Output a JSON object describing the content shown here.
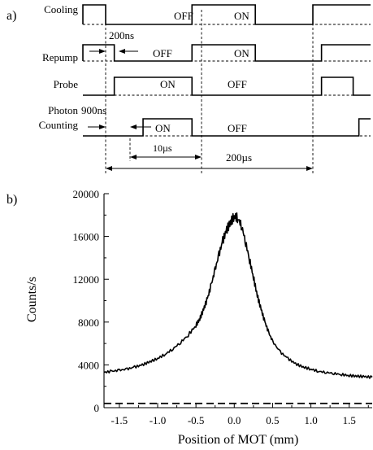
{
  "panel_a": {
    "label": "a)",
    "rows": [
      {
        "name": "Cooling",
        "high": [
          [
            0,
            1
          ],
          [
            4,
            6.2
          ],
          [
            8.2,
            10
          ]
        ],
        "states": [
          "OFF",
          "ON"
        ]
      },
      {
        "name": "Repump",
        "high": [
          [
            0,
            1.3
          ],
          [
            4,
            6.2
          ],
          [
            8.5,
            10
          ]
        ],
        "states": [
          "OFF",
          "ON"
        ]
      },
      {
        "name": "Probe",
        "high": [
          [
            1.3,
            4
          ],
          [
            8.5,
            9.6
          ]
        ],
        "states": [
          "ON",
          "OFF"
        ]
      },
      {
        "name_lines": [
          "Photon",
          "Counting"
        ],
        "high": [
          [
            2.3,
            4
          ],
          [
            9.8,
            10
          ]
        ],
        "states": [
          "ON",
          "OFF"
        ]
      }
    ],
    "delays": {
      "repump": "200ns",
      "counting": "900ns"
    },
    "spans": {
      "counting_window": "10µs",
      "period": "200µs"
    }
  },
  "chart_data": {
    "panel_label": "b)",
    "type": "line",
    "title": "",
    "xlabel": "Position of MOT (mm)",
    "ylabel": "Counts/s",
    "xlim": [
      -1.7,
      1.8
    ],
    "ylim": [
      0,
      20000
    ],
    "xticks": [
      "-1.5",
      "-1.0",
      "-0.5",
      "0.0",
      "0.5",
      "1.0",
      "1.5"
    ],
    "xtick_values": [
      -1.5,
      -1.0,
      -0.5,
      0.0,
      0.5,
      1.0,
      1.5
    ],
    "yticks": [
      "0",
      "4000",
      "8000",
      "12000",
      "16000",
      "20000"
    ],
    "ytick_values": [
      0,
      4000,
      8000,
      12000,
      16000,
      20000
    ],
    "grid": false,
    "series": [
      {
        "style": "solid",
        "x": [
          -1.7,
          -1.6,
          -1.5,
          -1.4,
          -1.3,
          -1.2,
          -1.1,
          -1.0,
          -0.9,
          -0.8,
          -0.7,
          -0.6,
          -0.5,
          -0.45,
          -0.4,
          -0.35,
          -0.3,
          -0.25,
          -0.2,
          -0.15,
          -0.1,
          -0.05,
          0.0,
          0.05,
          0.1,
          0.15,
          0.2,
          0.25,
          0.3,
          0.35,
          0.4,
          0.45,
          0.5,
          0.6,
          0.7,
          0.8,
          0.9,
          1.0,
          1.1,
          1.2,
          1.3,
          1.4,
          1.5,
          1.6,
          1.7,
          1.8
        ],
        "y": [
          3300,
          3400,
          3500,
          3600,
          3800,
          4000,
          4300,
          4600,
          5000,
          5500,
          6100,
          6800,
          7700,
          8300,
          9200,
          10200,
          11500,
          12900,
          14300,
          15600,
          16600,
          17300,
          17900,
          17700,
          16900,
          15400,
          13800,
          12200,
          10500,
          9200,
          8000,
          7000,
          6200,
          5200,
          4600,
          4100,
          3800,
          3600,
          3400,
          3300,
          3200,
          3100,
          3000,
          2950,
          2900,
          2850
        ]
      },
      {
        "style": "dashed",
        "x": [
          -1.7,
          1.8
        ],
        "y": [
          400,
          400
        ]
      }
    ]
  }
}
